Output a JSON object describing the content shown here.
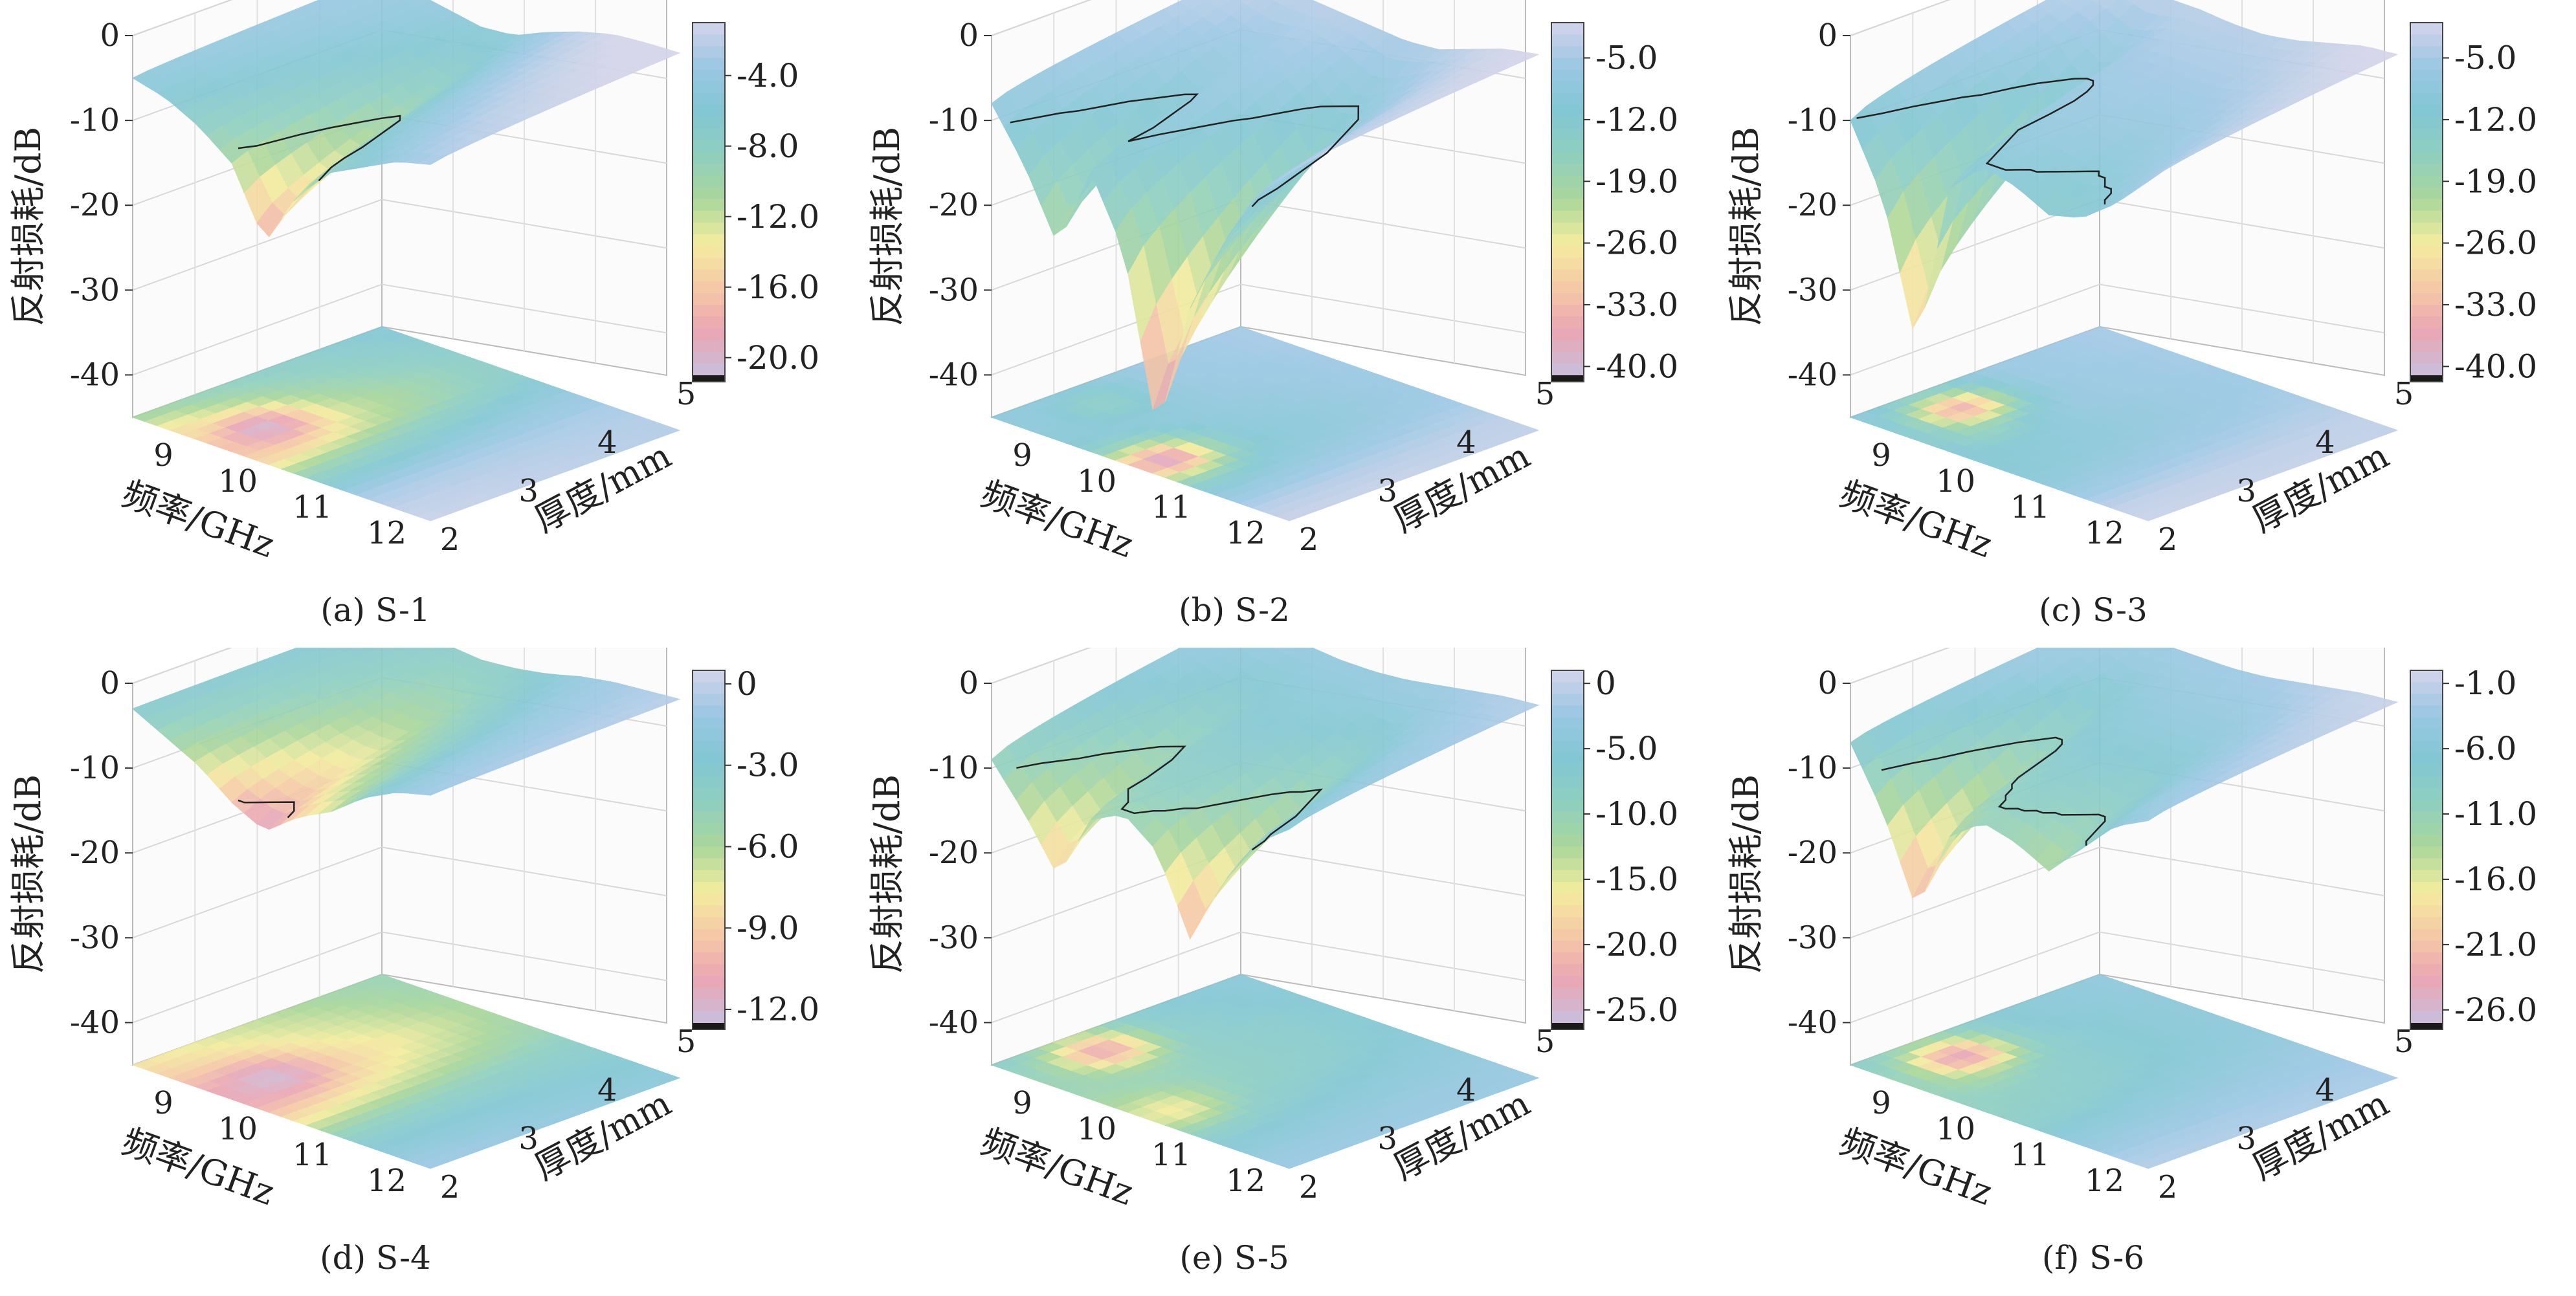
{
  "chart_data": [
    {
      "id": "a",
      "type": "surface",
      "caption": "(a) S-1",
      "zlabel": "反射损耗/dB",
      "xlabel": "频率/GHz",
      "ylabel": "厚度/mm",
      "zlim": [
        -45,
        0
      ],
      "zticks": [
        "0",
        "-10",
        "-20",
        "-30",
        "-40"
      ],
      "xticks": [
        "9",
        "10",
        "11",
        "12"
      ],
      "yticks": [
        "2",
        "3",
        "4",
        "5"
      ],
      "colorbar_ticks": [
        "-4.0",
        "-8.0",
        "-12.0",
        "-16.0",
        "-20.0"
      ],
      "colorbar_range": [
        -21,
        -1
      ],
      "front_profile": [
        -5,
        -6,
        -8,
        -11,
        -19,
        -12,
        -8,
        -6,
        -4,
        -3
      ],
      "back_profile": [
        -10,
        -12,
        -14,
        -16,
        -15,
        -10,
        -6,
        -3,
        -2,
        -1.5
      ],
      "floor_hotspots": [
        {
          "freq": 9.6,
          "thick": 2.6,
          "rl": -20
        },
        {
          "freq": 9.3,
          "thick": 2.2,
          "rl": -15
        }
      ],
      "colors": [
        "#e8e8f2",
        "#c9bfdc",
        "#d6c4e0",
        "#eaa6b4",
        "#f2c3a8",
        "#f3ec9e",
        "#a9d69a",
        "#8fcfc0",
        "#82c7d3",
        "#9bc7e4",
        "#1a1a1a"
      ]
    },
    {
      "id": "b",
      "type": "surface",
      "caption": "(b) S-2",
      "zlabel": "反射损耗/dB",
      "xlabel": "频率/GHz",
      "ylabel": "厚度/mm",
      "zlim": [
        -45,
        0
      ],
      "zticks": [
        "0",
        "-10",
        "-20",
        "-30",
        "-40"
      ],
      "xticks": [
        "9",
        "10",
        "11",
        "12"
      ],
      "yticks": [
        "2",
        "3",
        "4",
        "5"
      ],
      "colorbar_ticks": [
        "-5.0",
        "-12.0",
        "-19.0",
        "-26.0",
        "-33.0",
        "-40.0"
      ],
      "colorbar_range": [
        -41,
        -1
      ],
      "front_profile": [
        -8,
        -14,
        -22,
        -12,
        -20,
        -40,
        -24,
        -15,
        -8,
        -4
      ],
      "back_profile": [
        -9,
        -9,
        -10,
        -11,
        -12,
        -13,
        -12,
        -8,
        -4,
        -2
      ],
      "floor_hotspots": [
        {
          "freq": 10.5,
          "thick": 2.3,
          "rl": -38
        },
        {
          "freq": 9.0,
          "thick": 2.9,
          "rl": -14
        }
      ],
      "colors": [
        "#e8e8f2",
        "#c9bfdc",
        "#d6c4e0",
        "#eaa6b4",
        "#f2c3a8",
        "#f3ec9e",
        "#a9d69a",
        "#8fcfc0",
        "#82c7d3",
        "#9bc7e4",
        "#1a1a1a"
      ]
    },
    {
      "id": "c",
      "type": "surface",
      "caption": "(c) S-3",
      "zlabel": "反射损耗/dB",
      "xlabel": "频率/GHz",
      "ylabel": "厚度/mm",
      "zlim": [
        -45,
        0
      ],
      "zticks": [
        "0",
        "-10",
        "-20",
        "-30",
        "-40"
      ],
      "xticks": [
        "9",
        "10",
        "11",
        "12"
      ],
      "yticks": [
        "2",
        "3",
        "4",
        "5"
      ],
      "colorbar_ticks": [
        "-5.0",
        "-12.0",
        "-19.0",
        "-26.0",
        "-33.0",
        "-40.0"
      ],
      "colorbar_range": [
        -41,
        -1
      ],
      "front_profile": [
        -10,
        -18,
        -34,
        -14,
        -10,
        -11,
        -13,
        -12,
        -9,
        -5
      ],
      "back_profile": [
        -9,
        -9,
        -10,
        -10,
        -11,
        -11,
        -9,
        -6,
        -3,
        -2
      ],
      "floor_hotspots": [
        {
          "freq": 9.1,
          "thick": 2.8,
          "rl": -34
        },
        {
          "freq": 9.5,
          "thick": 2.6,
          "rl": -18
        }
      ],
      "colors": [
        "#e8e8f2",
        "#c9bfdc",
        "#d6c4e0",
        "#eaa6b4",
        "#f2c3a8",
        "#f3ec9e",
        "#a9d69a",
        "#8fcfc0",
        "#82c7d3",
        "#9bc7e4",
        "#1a1a1a"
      ]
    },
    {
      "id": "d",
      "type": "surface",
      "caption": "(d) S-4",
      "zlabel": "反射损耗/dB",
      "xlabel": "频率/GHz",
      "ylabel": "厚度/mm",
      "zlim": [
        -45,
        0
      ],
      "zticks": [
        "0",
        "-10",
        "-20",
        "-30",
        "-40"
      ],
      "xticks": [
        "9",
        "10",
        "11",
        "12"
      ],
      "yticks": [
        "2",
        "3",
        "4",
        "5"
      ],
      "colorbar_ticks": [
        "0",
        "-3.0",
        "-6.0",
        "-9.0",
        "-12.0"
      ],
      "colorbar_range": [
        -12.5,
        0.5
      ],
      "front_profile": [
        -3,
        -5,
        -7,
        -10,
        -12,
        -9,
        -7,
        -4,
        -2,
        -1
      ],
      "back_profile": [
        -8,
        -9,
        -10,
        -11,
        -10,
        -8,
        -5,
        -3,
        -2,
        -1
      ],
      "floor_hotspots": [
        {
          "freq": 9.7,
          "thick": 2.6,
          "rl": -12
        },
        {
          "freq": 9.4,
          "thick": 2.4,
          "rl": -9
        }
      ],
      "colors": [
        "#e8e8f2",
        "#c9bfdc",
        "#d6c4e0",
        "#eaa6b4",
        "#f2c3a8",
        "#f3ec9e",
        "#a9d69a",
        "#8fcfc0",
        "#82c7d3",
        "#9bc7e4",
        "#1a1a1a"
      ]
    },
    {
      "id": "e",
      "type": "surface",
      "caption": "(e) S-5",
      "zlabel": "反射损耗/dB",
      "xlabel": "频率/GHz",
      "ylabel": "厚度/mm",
      "zlim": [
        -45,
        0
      ],
      "zticks": [
        "0",
        "-10",
        "-20",
        "-30",
        "-40"
      ],
      "xticks": [
        "9",
        "10",
        "11",
        "12"
      ],
      "yticks": [
        "2",
        "3",
        "4",
        "5"
      ],
      "colorbar_ticks": [
        "0",
        "-5.0",
        "-10.0",
        "-15.0",
        "-20.0",
        "-25.0"
      ],
      "colorbar_range": [
        -26,
        1
      ],
      "front_profile": [
        -9,
        -14,
        -20,
        -12,
        -10,
        -13,
        -22,
        -14,
        -8,
        -5
      ],
      "back_profile": [
        -8,
        -9,
        -10,
        -11,
        -11,
        -10,
        -8,
        -6,
        -4,
        -3
      ],
      "floor_hotspots": [
        {
          "freq": 9.0,
          "thick": 2.9,
          "rl": -22
        },
        {
          "freq": 10.6,
          "thick": 2.3,
          "rl": -16
        }
      ],
      "colors": [
        "#e8e8f2",
        "#c9bfdc",
        "#d6c4e0",
        "#eaa6b4",
        "#f2c3a8",
        "#f3ec9e",
        "#a9d69a",
        "#8fcfc0",
        "#82c7d3",
        "#9bc7e4",
        "#1a1a1a"
      ]
    },
    {
      "id": "f",
      "type": "surface",
      "caption": "(f) S-6",
      "zlabel": "反射损耗/dB",
      "xlabel": "频率/GHz",
      "ylabel": "厚度/mm",
      "zlim": [
        -45,
        0
      ],
      "zticks": [
        "0",
        "-10",
        "-20",
        "-30",
        "-40"
      ],
      "xticks": [
        "9",
        "10",
        "11",
        "12"
      ],
      "yticks": [
        "2",
        "3",
        "4",
        "5"
      ],
      "colorbar_ticks": [
        "-1.0",
        "-6.0",
        "-11.0",
        "-16.0",
        "-21.0",
        "-26.0"
      ],
      "colorbar_range": [
        -27,
        0
      ],
      "front_profile": [
        -7,
        -14,
        -24,
        -14,
        -11,
        -12,
        -14,
        -10,
        -6,
        -4
      ],
      "back_profile": [
        -9,
        -9,
        -10,
        -10,
        -10,
        -9,
        -7,
        -5,
        -3,
        -2
      ],
      "floor_hotspots": [
        {
          "freq": 9.1,
          "thick": 2.8,
          "rl": -24
        },
        {
          "freq": 9.4,
          "thick": 2.6,
          "rl": -14
        }
      ],
      "colors": [
        "#e8e8f2",
        "#c9bfdc",
        "#d6c4e0",
        "#eaa6b4",
        "#f2c3a8",
        "#f3ec9e",
        "#a9d69a",
        "#8fcfc0",
        "#82c7d3",
        "#9bc7e4",
        "#1a1a1a"
      ]
    }
  ]
}
